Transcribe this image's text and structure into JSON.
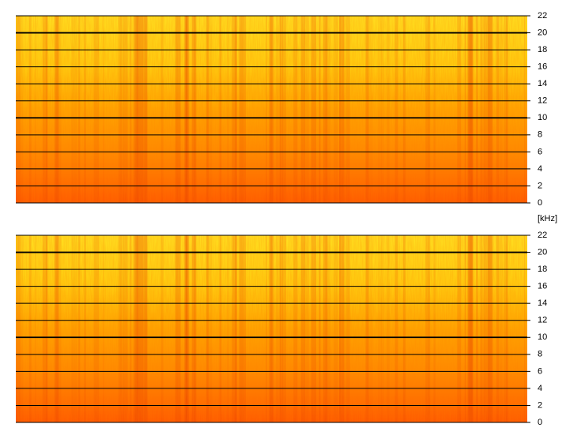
{
  "axis_label": "[kHz]",
  "chart_data": [
    {
      "type": "spectrogram",
      "ylim": [
        0,
        22
      ],
      "yticks": [
        0,
        2,
        4,
        6,
        8,
        10,
        12,
        14,
        16,
        18,
        20,
        22
      ],
      "grid": true
    },
    {
      "type": "spectrogram",
      "ylim": [
        0,
        22
      ],
      "yticks": [
        0,
        2,
        4,
        6,
        8,
        10,
        12,
        14,
        16,
        18,
        20,
        22
      ],
      "grid": true
    }
  ]
}
